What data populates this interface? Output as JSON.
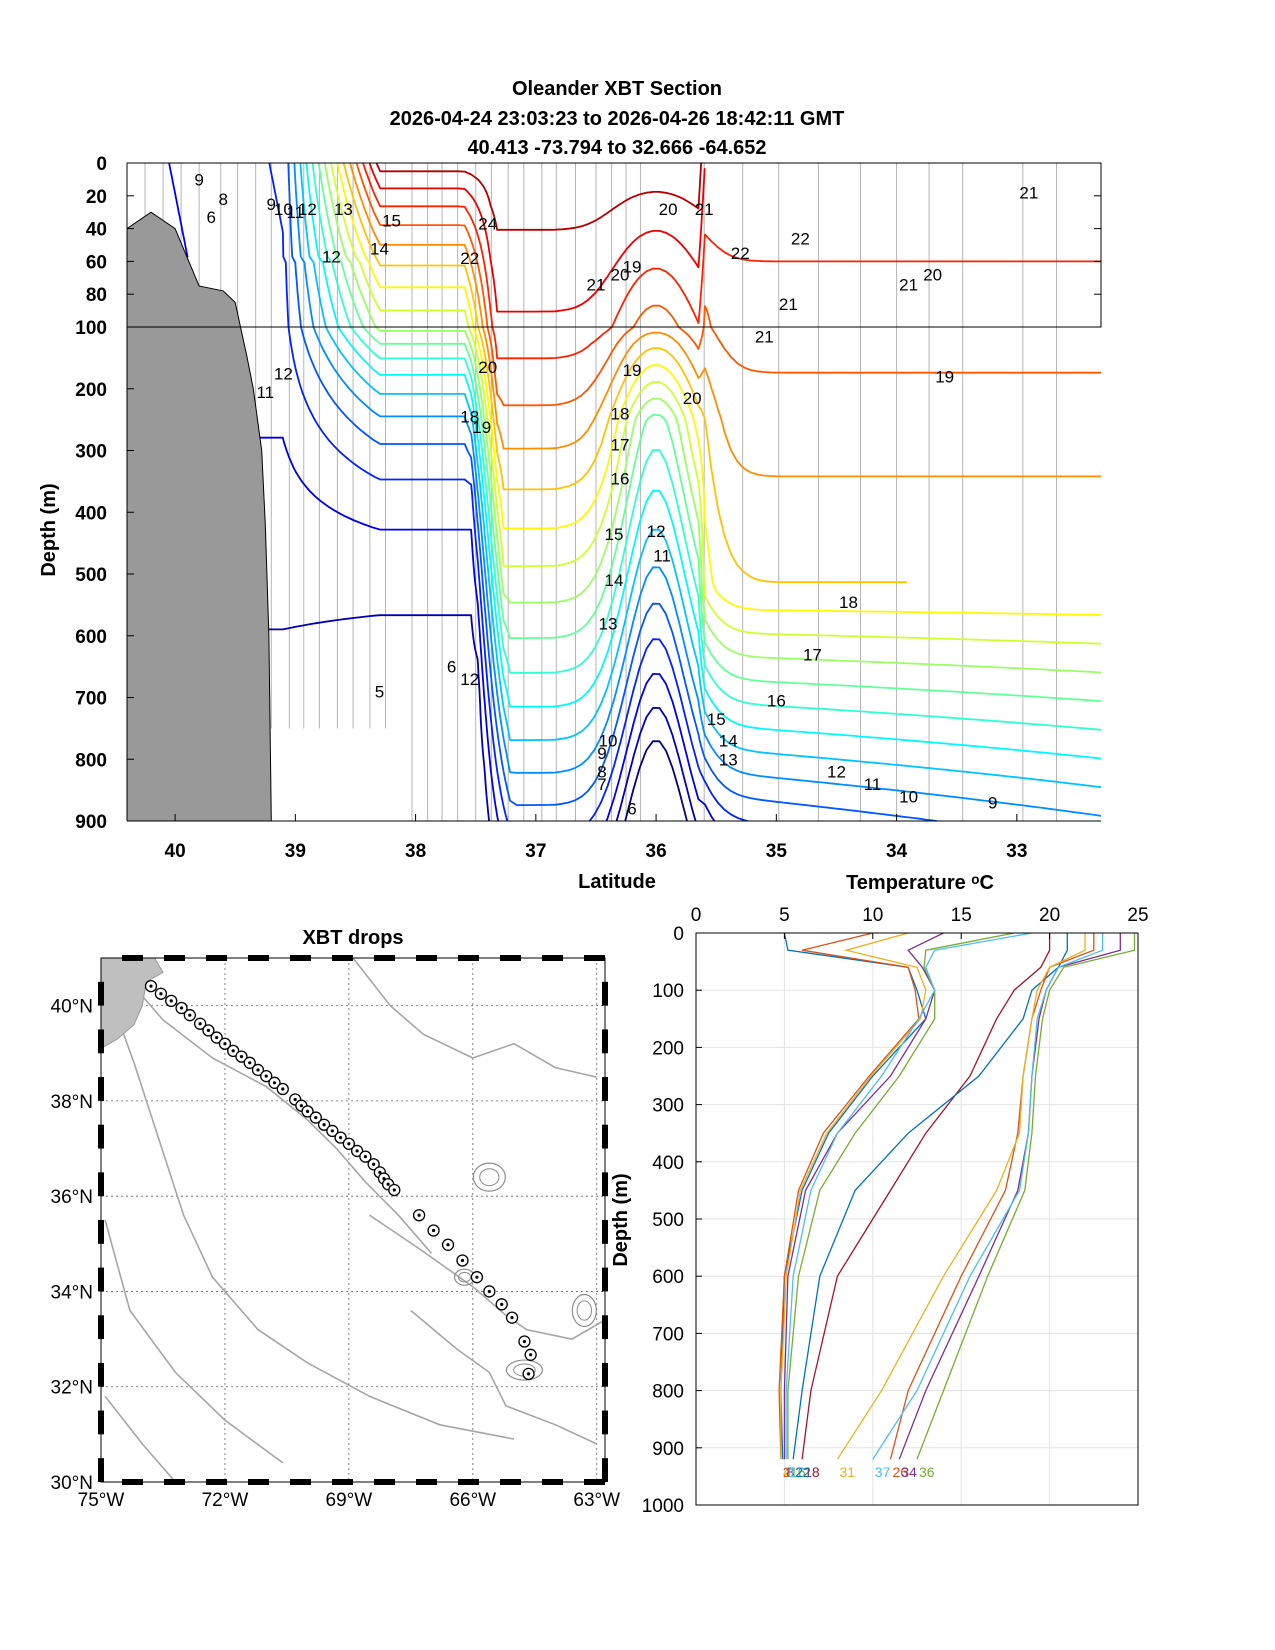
{
  "section": {
    "title": "Oleander XBT Section",
    "subtitle_time": "2026-04-24 23:03:23 to 2026-04-26 18:42:11 GMT",
    "subtitle_pos": "40.413 -73.794 to 32.666 -64.652",
    "xlabel": "Latitude",
    "ylabel": "Depth (m)",
    "colorbar_label": "Temperature ᵒC"
  },
  "map": {
    "title": "XBT drops",
    "xlabel": "",
    "ylabel": ""
  },
  "profile": {
    "xlabel": "Temperature ᵒC",
    "ylabel": "Depth (m)"
  },
  "colors": {
    "land": "#999999",
    "cold": "#00008f",
    "warm": "#d00000"
  },
  "chart_data": [
    {
      "type": "contour",
      "name": "section",
      "xlim": [
        40.4,
        32.3
      ],
      "x_reversed": true,
      "xticks": [
        40,
        39,
        38,
        37,
        36,
        35,
        34,
        33
      ],
      "ylim": [
        900,
        0
      ],
      "yticks": [
        0,
        20,
        40,
        60,
        80,
        100,
        200,
        300,
        400,
        500,
        600,
        700,
        800,
        900
      ],
      "upper_panel_depth_range": [
        0,
        100
      ],
      "lower_panel_depth_range": [
        100,
        900
      ],
      "grid": false,
      "contour_levels": [
        5,
        6,
        7,
        8,
        9,
        10,
        11,
        12,
        13,
        14,
        15,
        16,
        17,
        18,
        19,
        20,
        21,
        22,
        23,
        24
      ],
      "labelled_isotherms": [
        {
          "t": 9,
          "lat": 39.8,
          "d": 10
        },
        {
          "t": 8,
          "lat": 39.6,
          "d": 22
        },
        {
          "t": 6,
          "lat": 39.7,
          "d": 33
        },
        {
          "t": 9,
          "lat": 39.2,
          "d": 25
        },
        {
          "t": 10,
          "lat": 39.1,
          "d": 28
        },
        {
          "t": 11,
          "lat": 39.0,
          "d": 30
        },
        {
          "t": 12,
          "lat": 38.9,
          "d": 28
        },
        {
          "t": 13,
          "lat": 38.6,
          "d": 28
        },
        {
          "t": 15,
          "lat": 38.2,
          "d": 35
        },
        {
          "t": 14,
          "lat": 38.3,
          "d": 52
        },
        {
          "t": 12,
          "lat": 38.7,
          "d": 57
        },
        {
          "t": 24,
          "lat": 37.4,
          "d": 37
        },
        {
          "t": 22,
          "lat": 37.55,
          "d": 58
        },
        {
          "t": 21,
          "lat": 36.5,
          "d": 74
        },
        {
          "t": 20,
          "lat": 36.3,
          "d": 68
        },
        {
          "t": 19,
          "lat": 36.2,
          "d": 63
        },
        {
          "t": 20,
          "lat": 35.9,
          "d": 28
        },
        {
          "t": 21,
          "lat": 35.6,
          "d": 28
        },
        {
          "t": 22,
          "lat": 35.3,
          "d": 55
        },
        {
          "t": 22,
          "lat": 34.8,
          "d": 46
        },
        {
          "t": 21,
          "lat": 34.9,
          "d": 86
        },
        {
          "t": 21,
          "lat": 35.1,
          "d": 115
        },
        {
          "t": 21,
          "lat": 33.9,
          "d": 74
        },
        {
          "t": 20,
          "lat": 33.7,
          "d": 68
        },
        {
          "t": 21,
          "lat": 32.9,
          "d": 18
        },
        {
          "t": 20,
          "lat": 37.4,
          "d": 165
        },
        {
          "t": 19,
          "lat": 36.2,
          "d": 170
        },
        {
          "t": 20,
          "lat": 35.7,
          "d": 215
        },
        {
          "t": 19,
          "lat": 33.6,
          "d": 180
        },
        {
          "t": 18,
          "lat": 37.55,
          "d": 245
        },
        {
          "t": 19,
          "lat": 37.45,
          "d": 262
        },
        {
          "t": 18,
          "lat": 36.3,
          "d": 240
        },
        {
          "t": 17,
          "lat": 36.3,
          "d": 290
        },
        {
          "t": 16,
          "lat": 36.3,
          "d": 345
        },
        {
          "t": 15,
          "lat": 36.35,
          "d": 435
        },
        {
          "t": 14,
          "lat": 36.35,
          "d": 510
        },
        {
          "t": 13,
          "lat": 36.4,
          "d": 580
        },
        {
          "t": 12,
          "lat": 36.0,
          "d": 430
        },
        {
          "t": 11,
          "lat": 35.95,
          "d": 470
        },
        {
          "t": 12,
          "lat": 39.1,
          "d": 175
        },
        {
          "t": 11,
          "lat": 39.25,
          "d": 205
        },
        {
          "t": 18,
          "lat": 34.4,
          "d": 545
        },
        {
          "t": 17,
          "lat": 34.7,
          "d": 630
        },
        {
          "t": 16,
          "lat": 35.0,
          "d": 705
        },
        {
          "t": 15,
          "lat": 35.5,
          "d": 735
        },
        {
          "t": 14,
          "lat": 35.4,
          "d": 770
        },
        {
          "t": 13,
          "lat": 35.4,
          "d": 800
        },
        {
          "t": 12,
          "lat": 34.5,
          "d": 820
        },
        {
          "t": 11,
          "lat": 34.2,
          "d": 840
        },
        {
          "t": 10,
          "lat": 33.9,
          "d": 860
        },
        {
          "t": 9,
          "lat": 33.2,
          "d": 870
        },
        {
          "t": 5,
          "lat": 38.3,
          "d": 690
        },
        {
          "t": 6,
          "lat": 37.7,
          "d": 650
        },
        {
          "t": 10,
          "lat": 36.4,
          "d": 770
        },
        {
          "t": 9,
          "lat": 36.45,
          "d": 790
        },
        {
          "t": 8,
          "lat": 36.45,
          "d": 820
        },
        {
          "t": 7,
          "lat": 36.45,
          "d": 840
        },
        {
          "t": 6,
          "lat": 36.2,
          "d": 880
        },
        {
          "t": 12,
          "lat": 37.55,
          "d": 670
        }
      ]
    },
    {
      "type": "scatter",
      "name": "map",
      "xlim": [
        -75,
        -62.8
      ],
      "ylim": [
        30,
        41
      ],
      "xticks": [
        -75,
        -72,
        -69,
        -66,
        -63
      ],
      "xticklabels": [
        "75°W",
        "72°W",
        "69°W",
        "66°W",
        "63°W"
      ],
      "yticks": [
        30,
        32,
        34,
        36,
        38,
        40
      ],
      "yticklabels": [
        "30°N",
        "32°N",
        "34°N",
        "36°N",
        "38°N",
        "40°N"
      ],
      "grid": true,
      "points": [
        [
          -73.79,
          40.41
        ],
        [
          -73.55,
          40.25
        ],
        [
          -73.3,
          40.1
        ],
        [
          -73.05,
          39.95
        ],
        [
          -72.85,
          39.8
        ],
        [
          -72.6,
          39.62
        ],
        [
          -72.4,
          39.48
        ],
        [
          -72.2,
          39.33
        ],
        [
          -72.0,
          39.2
        ],
        [
          -71.8,
          39.05
        ],
        [
          -71.6,
          38.93
        ],
        [
          -71.4,
          38.8
        ],
        [
          -71.2,
          38.65
        ],
        [
          -71.0,
          38.52
        ],
        [
          -70.8,
          38.38
        ],
        [
          -70.6,
          38.25
        ],
        [
          -70.3,
          38.03
        ],
        [
          -70.15,
          37.9
        ],
        [
          -70.0,
          37.78
        ],
        [
          -69.8,
          37.65
        ],
        [
          -69.6,
          37.5
        ],
        [
          -69.4,
          37.37
        ],
        [
          -69.2,
          37.23
        ],
        [
          -69.0,
          37.1
        ],
        [
          -68.8,
          36.95
        ],
        [
          -68.6,
          36.83
        ],
        [
          -68.4,
          36.67
        ],
        [
          -68.25,
          36.5
        ],
        [
          -68.15,
          36.37
        ],
        [
          -68.05,
          36.25
        ],
        [
          -67.9,
          36.13
        ],
        [
          -67.3,
          35.6
        ],
        [
          -66.95,
          35.28
        ],
        [
          -66.6,
          34.98
        ],
        [
          -66.25,
          34.65
        ],
        [
          -65.9,
          34.3
        ],
        [
          -65.6,
          34.0
        ],
        [
          -65.3,
          33.73
        ],
        [
          -65.05,
          33.45
        ],
        [
          -64.75,
          32.95
        ],
        [
          -64.6,
          32.67
        ],
        [
          -64.65,
          32.27
        ]
      ]
    },
    {
      "type": "line",
      "name": "profiles",
      "xlim": [
        0,
        25
      ],
      "xticks": [
        0,
        5,
        10,
        15,
        20,
        25
      ],
      "ylim": [
        1000,
        0
      ],
      "yticks": [
        0,
        100,
        200,
        300,
        400,
        500,
        600,
        700,
        800,
        900,
        1000
      ],
      "grid": true,
      "series": [
        {
          "name": "1",
          "t": [
            5.0,
            5.2,
            12.0,
            12.5,
            13.0,
            10.0,
            7.5,
            6.0,
            5.0,
            4.8,
            4.9
          ],
          "d": [
            0,
            30,
            60,
            100,
            150,
            250,
            350,
            450,
            600,
            800,
            920
          ]
        },
        {
          "name": "2",
          "t": [
            10.0,
            6.0,
            12.0,
            12.4,
            12.6,
            9.8,
            7.2,
            5.8,
            5.0,
            4.7,
            4.8
          ],
          "d": [
            0,
            30,
            60,
            100,
            150,
            250,
            350,
            450,
            600,
            800,
            920
          ]
        },
        {
          "name": "4",
          "t": [
            12.0,
            8.5,
            12.5,
            13.0,
            12.7,
            9.9,
            7.4,
            5.9,
            5.1,
            4.8,
            4.8
          ],
          "d": [
            0,
            30,
            60,
            100,
            150,
            250,
            350,
            450,
            600,
            800,
            920
          ]
        },
        {
          "name": "8",
          "t": [
            14.0,
            12.0,
            12.8,
            13.5,
            13.0,
            11.0,
            8.0,
            6.2,
            5.2,
            5.0,
            5.0
          ],
          "d": [
            0,
            30,
            60,
            100,
            150,
            250,
            350,
            450,
            600,
            800,
            920
          ]
        },
        {
          "name": "16",
          "t": [
            18.0,
            13.0,
            12.9,
            13.5,
            13.5,
            11.5,
            9.0,
            7.0,
            5.8,
            5.2,
            5.2
          ],
          "d": [
            0,
            30,
            60,
            100,
            150,
            250,
            350,
            450,
            600,
            800,
            920
          ]
        },
        {
          "name": "17",
          "t": [
            19.0,
            13.5,
            13.0,
            13.5,
            12.6,
            10.5,
            8.0,
            6.5,
            5.5,
            5.1,
            5.1
          ],
          "d": [
            0,
            30,
            60,
            100,
            150,
            250,
            350,
            450,
            600,
            800,
            920
          ]
        },
        {
          "name": "18",
          "t": [
            20.0,
            20.0,
            19.5,
            18.0,
            17.0,
            15.5,
            13.0,
            11.0,
            8.0,
            6.5,
            6.0
          ],
          "d": [
            0,
            30,
            60,
            100,
            150,
            250,
            350,
            450,
            600,
            800,
            920
          ]
        },
        {
          "name": "22",
          "t": [
            21.0,
            21.0,
            20.5,
            19.0,
            18.5,
            16.0,
            12.0,
            9.0,
            7.0,
            6.0,
            5.5
          ],
          "d": [
            0,
            30,
            60,
            100,
            150,
            250,
            350,
            450,
            600,
            800,
            920
          ]
        },
        {
          "name": "26",
          "t": [
            22.5,
            22.5,
            20.0,
            19.5,
            19.0,
            18.5,
            18.2,
            17.5,
            15.0,
            12.0,
            11.0
          ],
          "d": [
            0,
            30,
            60,
            100,
            150,
            250,
            350,
            450,
            600,
            800,
            920
          ]
        },
        {
          "name": "31",
          "t": [
            22.0,
            22.0,
            20.0,
            19.3,
            19.0,
            18.5,
            18.3,
            17.0,
            14.0,
            10.5,
            8.0
          ],
          "d": [
            0,
            30,
            60,
            100,
            150,
            250,
            350,
            450,
            600,
            800,
            920
          ]
        },
        {
          "name": "34",
          "t": [
            24.0,
            24.0,
            20.5,
            19.8,
            19.4,
            19.0,
            18.8,
            18.2,
            16.0,
            13.0,
            11.5
          ],
          "d": [
            0,
            30,
            60,
            100,
            150,
            250,
            350,
            450,
            600,
            800,
            920
          ]
        },
        {
          "name": "36",
          "t": [
            24.8,
            24.8,
            20.8,
            20.0,
            19.6,
            19.2,
            19.0,
            18.6,
            16.5,
            14.0,
            12.5
          ],
          "d": [
            0,
            30,
            60,
            100,
            150,
            250,
            350,
            450,
            600,
            800,
            920
          ]
        },
        {
          "name": "37",
          "t": [
            23.0,
            23.0,
            20.5,
            19.8,
            19.3,
            19.0,
            18.8,
            18.3,
            15.5,
            12.5,
            10.0
          ],
          "d": [
            0,
            30,
            60,
            100,
            150,
            250,
            350,
            450,
            600,
            800,
            920
          ]
        }
      ]
    }
  ]
}
